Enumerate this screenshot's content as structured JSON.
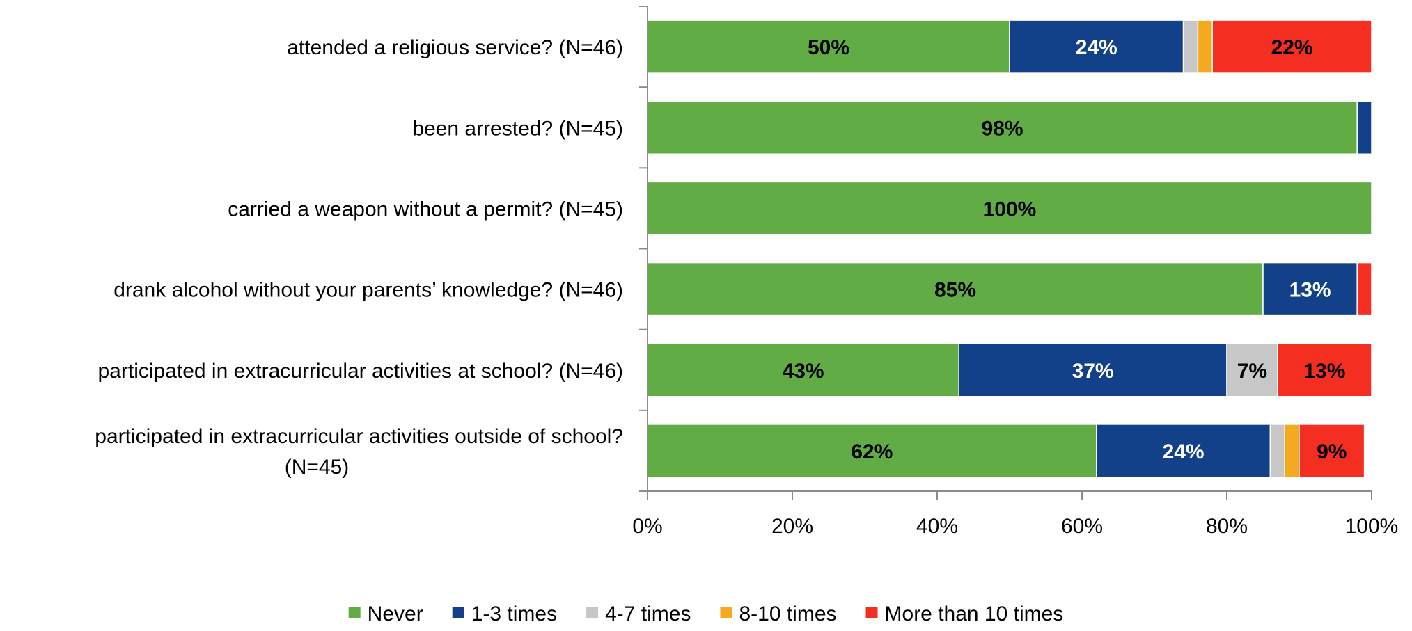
{
  "chart_data": {
    "type": "bar",
    "orientation": "horizontal",
    "stacked": true,
    "categories": [
      [
        "attended a religious service? (N=46)"
      ],
      [
        "been arrested? (N=45)"
      ],
      [
        "carried a weapon without a permit? (N=45)"
      ],
      [
        "drank alcohol without your parents’ knowledge? (N=46)"
      ],
      [
        "participated in extracurricular activities at school? (N=46)"
      ],
      [
        "participated in extracurricular activities outside of school?",
        "(N=45)"
      ]
    ],
    "series": [
      {
        "name": "Never",
        "color": "#62AC45",
        "label_color": "#000000",
        "values": [
          50,
          98,
          100,
          85,
          43,
          62
        ],
        "labels": [
          "50%",
          "98%",
          "100%",
          "85%",
          "43%",
          "62%"
        ]
      },
      {
        "name": "1-3 times",
        "color": "#124089",
        "label_color": "#ffffff",
        "values": [
          24,
          2,
          0,
          13,
          37,
          24
        ],
        "labels": [
          "24%",
          "",
          "",
          "13%",
          "37%",
          "24%"
        ]
      },
      {
        "name": "4-7 times",
        "color": "#C7C7C7",
        "label_color": "#000000",
        "values": [
          2,
          0,
          0,
          0,
          7,
          2
        ],
        "labels": [
          "",
          "",
          "",
          "",
          "7%",
          ""
        ]
      },
      {
        "name": "8-10 times",
        "color": "#F4AA20",
        "label_color": "#000000",
        "values": [
          2,
          0,
          0,
          0,
          0,
          2
        ],
        "labels": [
          "",
          "",
          "",
          "",
          "",
          ""
        ]
      },
      {
        "name": "More than 10 times",
        "color": "#F52E22",
        "label_color": "#000000",
        "values": [
          22,
          0,
          0,
          2,
          13,
          9
        ],
        "labels": [
          "22%",
          "",
          "",
          "",
          "13%",
          "9%"
        ]
      }
    ],
    "xlim": [
      0,
      100
    ],
    "x_ticks": [
      "0%",
      "20%",
      "40%",
      "60%",
      "80%",
      "100%"
    ],
    "grid": false,
    "legend_position": "bottom"
  }
}
